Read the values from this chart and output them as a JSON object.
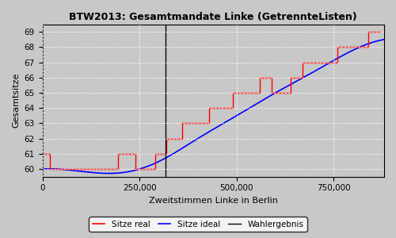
{
  "title": "BTW2013: Gesamtmandate Linke (GetrennteListen)",
  "xlabel": "Zweitstimmen Linke in Berlin",
  "ylabel": "Gesamtsitze",
  "background_color": "#c8c8c8",
  "ylim": [
    59.5,
    69.5
  ],
  "xlim": [
    0,
    880000
  ],
  "wahlergebnis_x": 318000,
  "xticks": [
    0,
    250000,
    500000,
    750000
  ],
  "yticks": [
    60,
    61,
    62,
    63,
    64,
    65,
    66,
    67,
    68,
    69
  ],
  "legend_labels": [
    "Sitze real",
    "Sitze ideal",
    "Wahlergebnis"
  ],
  "legend_colors": [
    "red",
    "blue",
    "black"
  ],
  "real_x": [
    0,
    20000,
    20001,
    195000,
    195001,
    240000,
    240001,
    290000,
    290001,
    320000,
    320001,
    360000,
    360001,
    400000,
    400001,
    430000,
    430001,
    470000,
    470001,
    490000,
    490001,
    530000,
    530001,
    560000,
    560001,
    590000,
    590001,
    640000,
    640001,
    670000,
    670001,
    720000,
    720001,
    760000,
    760001,
    800000,
    800001,
    840000,
    840001,
    870000
  ],
  "real_y": [
    61,
    61,
    60,
    60,
    61,
    61,
    60,
    60,
    61,
    61,
    62,
    62,
    63,
    63,
    63,
    63,
    64,
    64,
    64,
    64,
    65,
    65,
    65,
    65,
    66,
    66,
    65,
    65,
    66,
    66,
    67,
    67,
    67,
    67,
    68,
    68,
    68,
    68,
    69,
    69
  ],
  "ideal_x": [
    0,
    100000,
    200000,
    300000,
    400000,
    500000,
    600000,
    700000,
    800000,
    880000
  ],
  "ideal_y": [
    60.0,
    59.85,
    59.75,
    60.5,
    62.0,
    63.5,
    65.0,
    66.4,
    67.8,
    68.5
  ]
}
